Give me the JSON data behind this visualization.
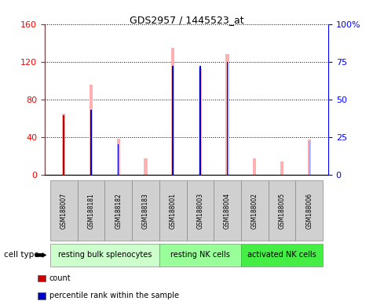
{
  "title": "GDS2957 / 1445523_at",
  "samples": [
    "GSM188007",
    "GSM188181",
    "GSM188182",
    "GSM188183",
    "GSM188001",
    "GSM188003",
    "GSM188004",
    "GSM188002",
    "GSM188005",
    "GSM188006"
  ],
  "count_values": [
    63,
    0,
    0,
    0,
    0,
    0,
    0,
    0,
    0,
    0
  ],
  "rank_values": [
    35,
    43,
    20,
    0,
    72,
    72,
    75,
    0,
    0,
    0
  ],
  "value_absent": [
    65,
    96,
    38,
    17,
    135,
    113,
    128,
    17,
    14,
    37
  ],
  "rank_absent": [
    35,
    43,
    20,
    0,
    72,
    72,
    75,
    0,
    0,
    22
  ],
  "left_ylim": [
    0,
    160
  ],
  "right_ylim": [
    0,
    100
  ],
  "left_yticks": [
    0,
    40,
    80,
    120,
    160
  ],
  "right_yticks": [
    0,
    25,
    50,
    75,
    100
  ],
  "right_yticklabels": [
    "0",
    "25",
    "50",
    "75",
    "100%"
  ],
  "cell_groups": [
    {
      "label": "resting bulk splenocytes",
      "start": 0,
      "end": 4,
      "color": "#ccffcc"
    },
    {
      "label": "resting NK cells",
      "start": 4,
      "end": 7,
      "color": "#99ff99"
    },
    {
      "label": "activated NK cells",
      "start": 7,
      "end": 10,
      "color": "#44ee44"
    }
  ],
  "color_count": "#cc0000",
  "color_rank": "#0000cc",
  "color_value_absent": "#ffb0b0",
  "color_rank_absent": "#aaaaff",
  "bg_plot": "#ffffff",
  "sample_bg": "#d0d0d0",
  "grid_color": "#000000"
}
